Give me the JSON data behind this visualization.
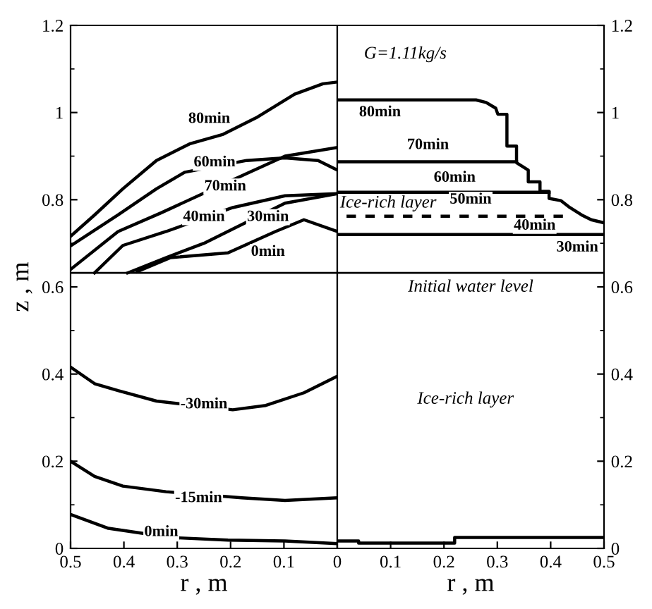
{
  "chart_data": [
    {
      "type": "line",
      "xlabel": "r , m",
      "ylabel": "z , m",
      "xlim": [
        0.5,
        0
      ],
      "ylim": [
        0,
        1.2
      ],
      "xticks": [
        0.5,
        0.4,
        0.3,
        0.2,
        0.1,
        {
          "value": 0,
          "label": null
        }
      ],
      "yticks": [
        0,
        0.2,
        0.4,
        0.6,
        0.8,
        1,
        1.2
      ],
      "series": [
        {
          "color": "#000000",
          "x": [
            0.5,
            0.455,
            0.402,
            0.339,
            0.277,
            0.214,
            0.152,
            0.08,
            0.027,
            0
          ],
          "values": [
            0.716,
            0.765,
            0.825,
            0.89,
            0.928,
            0.95,
            0.988,
            1.042,
            1.066,
            1.07
          ]
        },
        {
          "color": "#000000",
          "x": [
            0.5,
            0.411,
            0.339,
            0.286,
            0.17,
            0.098,
            0.036,
            0
          ],
          "values": [
            0.694,
            0.765,
            0.825,
            0.863,
            0.89,
            0.896,
            0.89,
            0.868
          ]
        },
        {
          "color": "#000000",
          "x": [
            0.5,
            0.411,
            0.33,
            0.17,
            0.098,
            0
          ],
          "values": [
            0.64,
            0.727,
            0.77,
            0.86,
            0.9,
            0.92
          ]
        },
        {
          "color": "#000000",
          "x": [
            0.455,
            0.402,
            0.321,
            0.196,
            0.098,
            0
          ],
          "values": [
            0.632,
            0.695,
            0.727,
            0.782,
            0.809,
            0.814
          ]
        },
        {
          "color": "#000000",
          "x": [
            0.393,
            0.321,
            0.25,
            0.1875,
            0.098,
            0
          ],
          "values": [
            0.632,
            0.667,
            0.7,
            0.738,
            0.792,
            0.814
          ]
        },
        {
          "color": "#000000",
          "x": [
            0.375,
            0.3125,
            0.205,
            0.116,
            0.0625,
            0
          ],
          "values": [
            0.635,
            0.667,
            0.678,
            0.727,
            0.754,
            0.727
          ]
        },
        {
          "color": "#000000",
          "x": [
            0.5,
            0.455,
            0.411,
            0.339,
            0.196,
            0.134,
            0.0625,
            0
          ],
          "values": [
            0.416,
            0.378,
            0.362,
            0.338,
            0.318,
            0.328,
            0.357,
            0.395
          ]
        },
        {
          "color": "#000000",
          "x": [
            0.5,
            0.455,
            0.402,
            0.321,
            0.179,
            0.098,
            0
          ],
          "values": [
            0.2,
            0.165,
            0.143,
            0.13,
            0.116,
            0.11,
            0.116
          ]
        },
        {
          "color": "#000000",
          "x": [
            0.5,
            0.429,
            0.3125,
            0.205,
            0.098,
            0
          ],
          "values": [
            0.078,
            0.046,
            0.025,
            0.019,
            0.017,
            0.011
          ]
        }
      ],
      "ref_lines": [
        {
          "axis": "y",
          "value": 0.632,
          "color": "#000000"
        }
      ],
      "annotations": [
        {
          "text": "80min",
          "x": 0.24,
          "y": 0.985
        },
        {
          "text": "60min",
          "x": 0.23,
          "y": 0.885
        },
        {
          "text": "70min",
          "x": 0.21,
          "y": 0.83
        },
        {
          "text": "40min",
          "x": 0.25,
          "y": 0.76
        },
        {
          "text": "30min",
          "x": 0.13,
          "y": 0.76
        },
        {
          "text": "0min",
          "x": 0.13,
          "y": 0.68
        },
        {
          "text": "-30min",
          "x": 0.25,
          "y": 0.33
        },
        {
          "text": "-15min",
          "x": 0.26,
          "y": 0.115
        },
        {
          "text": "0min",
          "x": 0.33,
          "y": 0.037
        }
      ]
    },
    {
      "type": "line",
      "xlabel": "r , m",
      "xlim": [
        0,
        0.5
      ],
      "ylim": [
        0,
        1.2
      ],
      "xticks": [
        0,
        0.1,
        0.2,
        0.3,
        0.4,
        0.5
      ],
      "yticks": [
        0,
        0.2,
        0.4,
        0.6,
        0.8,
        1,
        1.2
      ],
      "series": [
        {
          "color": "#000000",
          "x": [
            0,
            0.26,
            0.279,
            0.297,
            0.301,
            0.318,
            0.318,
            0.336,
            0.336,
            0.358,
            0.358,
            0.38,
            0.38,
            0.397,
            0.397,
            0.419,
            0.436,
            0.458,
            0.476,
            0.5
          ],
          "values": [
            1.029,
            1.029,
            1.023,
            1.01,
            0.996,
            0.996,
            0.923,
            0.923,
            0.885,
            0.868,
            0.841,
            0.841,
            0.819,
            0.819,
            0.803,
            0.798,
            0.782,
            0.765,
            0.754,
            0.747
          ]
        },
        {
          "color": "#000000",
          "x": [
            0,
            0.336
          ],
          "values": [
            0.887,
            0.887
          ]
        },
        {
          "color": "#000000",
          "x": [
            0,
            0.397
          ],
          "values": [
            0.817,
            0.817
          ]
        },
        {
          "color": "#000000",
          "line_style": "dashed",
          "x": [
            0,
            0.423
          ],
          "values": [
            0.762,
            0.762
          ]
        },
        {
          "color": "#000000",
          "x": [
            0,
            0.5
          ],
          "values": [
            0.72,
            0.72
          ]
        },
        {
          "color": "#000000",
          "x": [
            0,
            0.04,
            0.04,
            0.22,
            0.22,
            0.5
          ],
          "values": [
            0.017,
            0.017,
            0.012,
            0.012,
            0.025,
            0.025
          ]
        }
      ],
      "ref_lines": [
        {
          "axis": "y",
          "value": 0.632,
          "color": "#000000",
          "label": "Initial water level"
        }
      ],
      "annotations": [
        "G=1.11kg/s",
        {
          "text": "80min",
          "x": 0.08,
          "y": 1.0
        },
        {
          "text": "70min",
          "x": 0.17,
          "y": 0.925
        },
        {
          "text": "60min",
          "x": 0.22,
          "y": 0.85
        },
        "Ice-rich layer",
        {
          "text": "50min",
          "x": 0.25,
          "y": 0.8
        },
        {
          "text": "40min",
          "x": 0.37,
          "y": 0.74
        },
        {
          "text": "30min",
          "x": 0.45,
          "y": 0.69
        },
        "Ice-rich layer"
      ]
    }
  ]
}
